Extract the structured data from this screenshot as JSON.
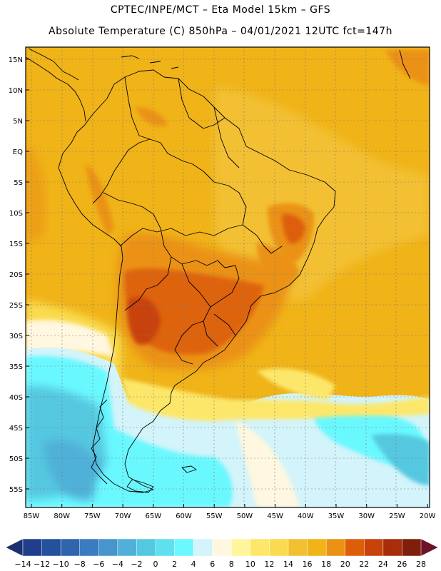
{
  "header": {
    "line1": "CPTEC/INPE/MCT –  Eta Model 15km – GFS",
    "line2": "Absolute Temperature (C) 850hPa – 04/01/2021 12UTC fct=147h"
  },
  "map": {
    "lat_labels": [
      "15N",
      "10N",
      "5N",
      "EQ",
      "5S",
      "10S",
      "15S",
      "20S",
      "25S",
      "30S",
      "35S",
      "40S",
      "45S",
      "50S",
      "55S"
    ],
    "lon_labels": [
      "85W",
      "80W",
      "75W",
      "70W",
      "65W",
      "60W",
      "55W",
      "50W",
      "45W",
      "40W",
      "35W",
      "30W",
      "25W",
      "20W"
    ],
    "lon_range": [
      -86,
      -19.5
    ],
    "lat_range": [
      -58,
      17
    ]
  },
  "colorbar": {
    "labels": [
      "-14",
      "-12",
      "-10",
      "-8",
      "-6",
      "-4",
      "-2",
      "0",
      "2",
      "4",
      "6",
      "8",
      "10",
      "12",
      "14",
      "16",
      "18",
      "20",
      "22",
      "24",
      "26",
      "28"
    ],
    "colors": [
      "#1f3e8c",
      "#24519c",
      "#2e65ad",
      "#3b7bbf",
      "#4795ca",
      "#50b0d8",
      "#54c8e0",
      "#5fe0ee",
      "#6bf8ff",
      "#d2f4fa",
      "#fff7df",
      "#fff59c",
      "#fde76a",
      "#fadb4f",
      "#f2c030",
      "#f0b318",
      "#eb9214",
      "#dd5e09",
      "#c84209",
      "#a82e0b",
      "#7e1f0c"
    ],
    "low_color": "#1a3073",
    "high_color": "#6e1325"
  }
}
